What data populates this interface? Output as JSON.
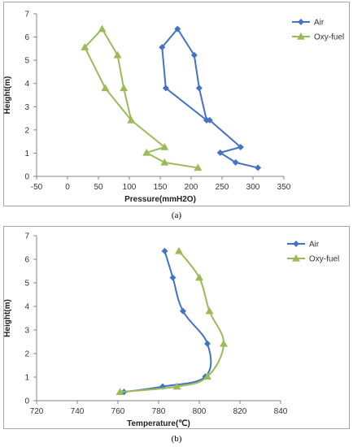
{
  "chart_data": [
    {
      "type": "line",
      "xlabel": "Pressure(mmH2O)",
      "ylabel": "Height(m)",
      "xlim": [
        -50,
        350
      ],
      "ylim": [
        0,
        7
      ],
      "xticks": [
        "-50",
        "0",
        "50",
        "100",
        "150",
        "200",
        "250",
        "300",
        "350"
      ],
      "yticks": [
        "0",
        "1",
        "2",
        "3",
        "4",
        "5",
        "6",
        "7"
      ],
      "grid": false,
      "legend_position": "top-right",
      "series": [
        {
          "name": "Air",
          "color": "#4472c4",
          "marker": "diamond",
          "points": [
            [
              308,
              0.37
            ],
            [
              272,
              0.6
            ],
            [
              247,
              1.02
            ],
            [
              280,
              1.26
            ],
            [
              230,
              2.42
            ],
            [
              225,
              2.42
            ],
            [
              213,
              3.8
            ],
            [
              205,
              5.22
            ],
            [
              178,
              6.35
            ],
            [
              153,
              5.56
            ],
            [
              159,
              3.8
            ],
            [
              225,
              2.42
            ]
          ]
        },
        {
          "name": "Oxy-fuel",
          "color": "#9bbb59",
          "marker": "triangle",
          "points": [
            [
              211,
              0.37
            ],
            [
              157,
              0.6
            ],
            [
              128,
              1.02
            ],
            [
              157,
              1.26
            ],
            [
              103,
              2.42
            ],
            [
              91,
              3.8
            ],
            [
              81,
              5.22
            ],
            [
              56,
              6.35
            ],
            [
              28,
              5.56
            ],
            [
              61,
              3.8
            ],
            [
              103,
              2.42
            ]
          ]
        }
      ]
    },
    {
      "type": "line",
      "xlabel": "Temperature(℃)",
      "ylabel": "Height(m)",
      "xlim": [
        720,
        840
      ],
      "ylim": [
        0,
        7
      ],
      "xticks": [
        "720",
        "740",
        "760",
        "780",
        "800",
        "820",
        "840"
      ],
      "yticks": [
        "0",
        "1",
        "2",
        "3",
        "4",
        "5",
        "6",
        "7"
      ],
      "grid": false,
      "legend_position": "top-right",
      "series": [
        {
          "name": "Air",
          "color": "#4472c4",
          "marker": "diamond",
          "points": [
            [
              763,
              0.37
            ],
            [
              782,
              0.6
            ],
            [
              803,
              1.02
            ],
            [
              804,
              2.42
            ],
            [
              792,
              3.8
            ],
            [
              787,
              5.22
            ],
            [
              783,
              6.35
            ]
          ]
        },
        {
          "name": "Oxy-fuel",
          "color": "#9bbb59",
          "marker": "triangle",
          "points": [
            [
              761,
              0.37
            ],
            [
              789,
              0.6
            ],
            [
              804,
              1.02
            ],
            [
              812,
              2.42
            ],
            [
              805,
              3.8
            ],
            [
              800,
              5.22
            ],
            [
              790,
              6.35
            ]
          ]
        }
      ]
    }
  ],
  "captions": [
    "(a)",
    "(b)"
  ]
}
